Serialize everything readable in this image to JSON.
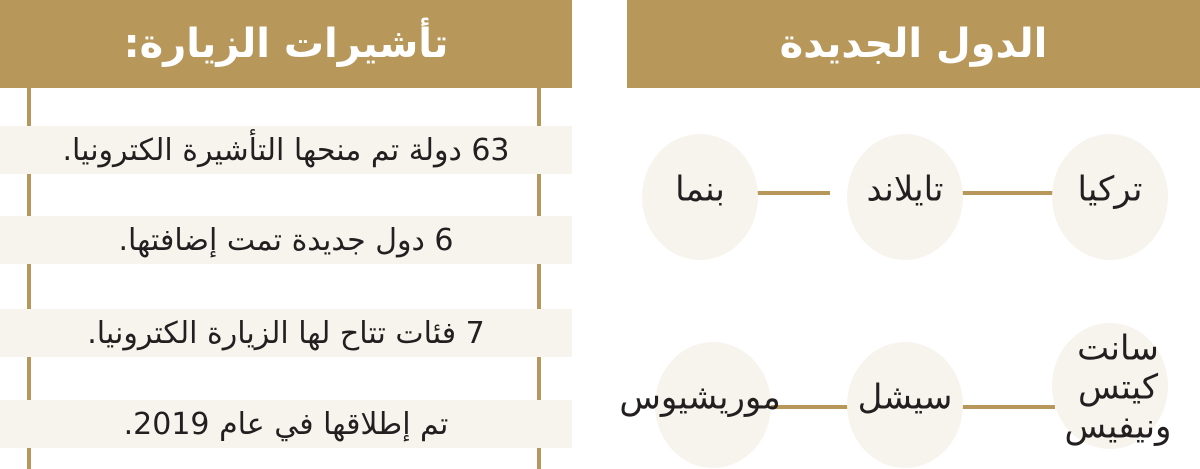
{
  "visas": {
    "title": "تأشيرات الزيارة:",
    "items": [
      "63 دولة تم منحها التأشيرة الكترونيا.",
      "6 دول جديدة تمت إضافتها.",
      "7 فئات تتاح لها الزيارة الكترونيا.",
      "تم إطلاقها في عام 2019."
    ]
  },
  "countries": {
    "title": "الدول الجديدة",
    "items": [
      "تركيا",
      "تايلاند",
      "بنما",
      "سانت كيتس ونيفيس",
      "سيشل",
      "موريشيوس"
    ]
  },
  "colors": {
    "accent": "#b8975a",
    "circle": "#f7f4ee"
  }
}
